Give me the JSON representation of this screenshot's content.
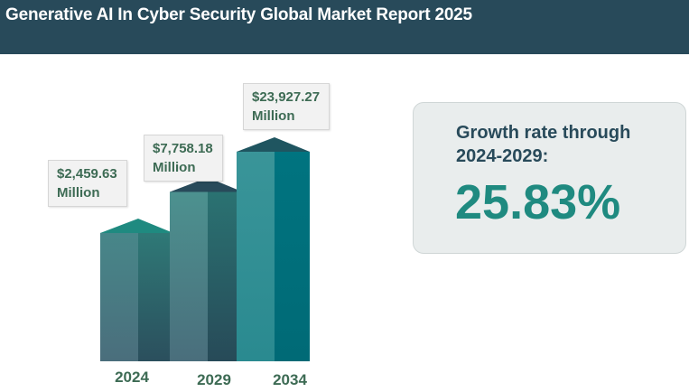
{
  "header": {
    "title": "Generative AI In Cyber Security Global Market Report 2025"
  },
  "chart_data": {
    "type": "bar",
    "title": "",
    "xlabel": "",
    "ylabel": "",
    "categories": [
      "2024",
      "2029",
      "2034"
    ],
    "values": [
      2459.63,
      7758.18,
      23927.27
    ],
    "value_labels": [
      {
        "amount": "$2,459.63",
        "unit": "Million"
      },
      {
        "amount": "$7,758.18",
        "unit": "Million"
      },
      {
        "amount": "$23,927.27",
        "unit": "Million"
      }
    ],
    "colors": {
      "bar_2024": [
        "#1f8a80",
        "#4a6e7c"
      ],
      "bar_2029": [
        "#284a5a",
        "#47888a"
      ],
      "bar_2034": [
        "#1f5f6a",
        "#006f7a"
      ]
    }
  },
  "growth": {
    "label": "Growth rate through 2024-2029:",
    "value": "25.83%"
  }
}
